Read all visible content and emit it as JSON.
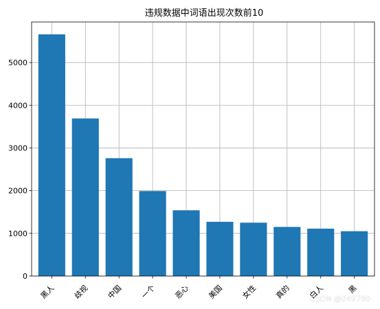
{
  "chart_data": {
    "type": "bar",
    "title": "违规数据中词语出现次数前10",
    "xlabel": "",
    "ylabel": "",
    "categories": [
      "黑人",
      "歧视",
      "中国",
      "一个",
      "恶心",
      "美国",
      "女性",
      "真的",
      "白人",
      "黑"
    ],
    "values": [
      5660,
      3690,
      2760,
      1990,
      1540,
      1270,
      1250,
      1150,
      1110,
      1050
    ],
    "ylim": [
      0,
      5950
    ],
    "yticks": [
      0,
      1000,
      2000,
      3000,
      4000,
      5000
    ],
    "grid": true,
    "bar_color": "#1f77b4"
  },
  "watermark": "CSDN @249760"
}
